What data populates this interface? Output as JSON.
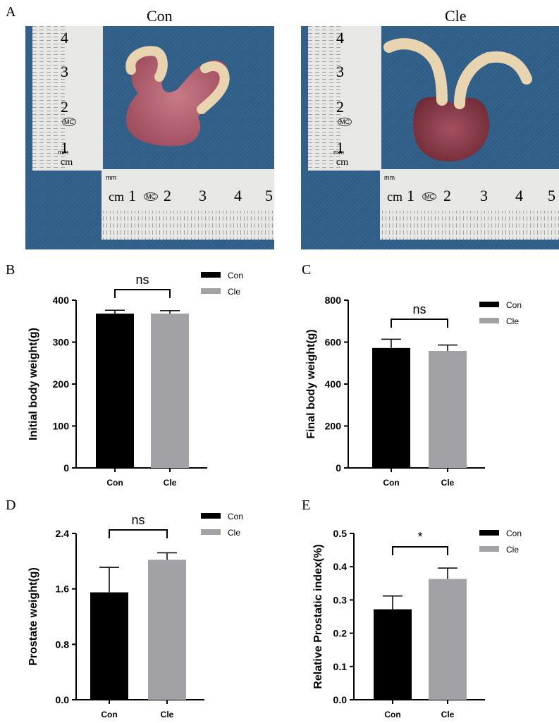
{
  "panels": {
    "a": "A",
    "b": "B",
    "c": "C",
    "d": "D",
    "e": "E"
  },
  "photos": [
    {
      "title": "Con",
      "ruler_v": [
        "4",
        "3",
        "2",
        "1"
      ],
      "ruler_v_unit": "cm",
      "ruler_h": [
        "1",
        "2",
        "3",
        "4",
        "5"
      ],
      "ruler_h_unit": "cm",
      "mm": "mm",
      "brand": "MC"
    },
    {
      "title": "Cle",
      "ruler_v": [
        "4",
        "3",
        "2",
        "1"
      ],
      "ruler_v_unit": "cm",
      "ruler_h": [
        "1",
        "2",
        "3",
        "4",
        "5"
      ],
      "ruler_h_unit": "cm",
      "mm": "mm",
      "brand": "MC"
    }
  ],
  "colors": {
    "con": "#000000",
    "cle": "#a2a2a6",
    "photo_bg": "#2f5d86",
    "tissue": "#b55a6a"
  },
  "chart_data": [
    {
      "type": "bar",
      "panel": "B",
      "categories": [
        "Con",
        "Cle"
      ],
      "values": [
        368,
        368
      ],
      "errors": [
        8,
        7
      ],
      "ylabel": "Initial body weight(g)",
      "xlabel": "",
      "ylim": [
        0,
        400
      ],
      "yticks": [
        "0",
        "100",
        "200",
        "300",
        "400"
      ],
      "significance": "ns",
      "legend": [
        "Con",
        "Cle"
      ],
      "legend_position": "top-right"
    },
    {
      "type": "bar",
      "panel": "C",
      "categories": [
        "Con",
        "Cle"
      ],
      "values": [
        572,
        558
      ],
      "errors": [
        42,
        28
      ],
      "ylabel": "Final body weight(g)",
      "xlabel": "",
      "ylim": [
        0,
        800
      ],
      "yticks": [
        "0",
        "200",
        "400",
        "600",
        "800"
      ],
      "significance": "ns",
      "legend": [
        "Con",
        "Cle"
      ],
      "legend_position": "top-right"
    },
    {
      "type": "bar",
      "panel": "D",
      "categories": [
        "Con",
        "Cle"
      ],
      "values": [
        1.55,
        2.02
      ],
      "errors": [
        0.36,
        0.1
      ],
      "ylabel": "Prostate weight(g)",
      "xlabel": "",
      "ylim": [
        0,
        2.4
      ],
      "yticks": [
        "0.0",
        "0.8",
        "1.6",
        "2.4"
      ],
      "significance": "ns",
      "legend": [
        "Con",
        "Cle"
      ],
      "legend_position": "top-right"
    },
    {
      "type": "bar",
      "panel": "E",
      "categories": [
        "Con",
        "Cle"
      ],
      "values": [
        0.272,
        0.363
      ],
      "errors": [
        0.04,
        0.033
      ],
      "ylabel": "Relative Prostatic index(%)",
      "xlabel": "",
      "ylim": [
        0,
        0.5
      ],
      "yticks": [
        "0.0",
        "0.1",
        "0.2",
        "0.3",
        "0.4",
        "0.5"
      ],
      "significance": "*",
      "legend": [
        "Con",
        "Cle"
      ],
      "legend_position": "top-right"
    }
  ]
}
